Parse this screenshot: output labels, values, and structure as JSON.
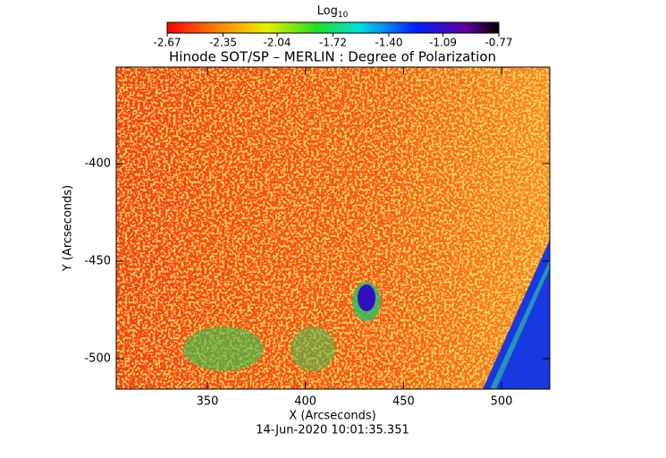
{
  "chart_data": {
    "type": "image",
    "title": "Hinode SOT/SP – MERLIN : Degree of Polarization",
    "colorbar": {
      "label": "Log",
      "label_subscript": "10",
      "lim": [
        -2.67,
        -0.77
      ],
      "ticks": [
        -2.67,
        -2.35,
        -2.04,
        -1.72,
        {
          "value": -1.4,
          "label": "-1.40"
        },
        -1.09,
        -0.77
      ]
    },
    "xlabel": "X (Arcseconds)",
    "ylabel": "Y (Arcseconds)",
    "xlim": [
      303.5,
      524.6
    ],
    "xticks": [
      350,
      400,
      450,
      500
    ],
    "ylim": [
      -515.6,
      -350.5
    ],
    "yticks": [
      -400,
      -450,
      -500
    ],
    "footer": "14-Jun-2020 10:01:35.351"
  }
}
